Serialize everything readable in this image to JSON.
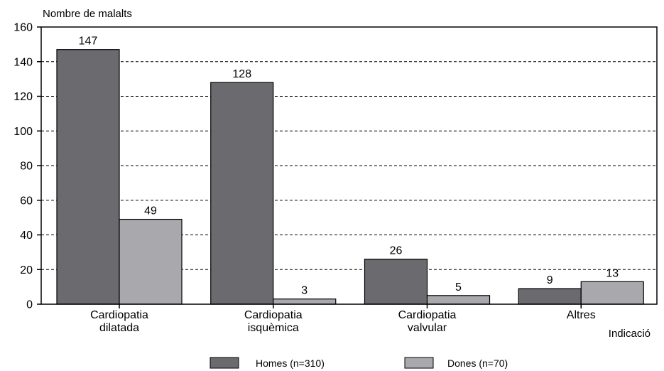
{
  "chart_data": {
    "type": "bar",
    "ylabel": "Nombre de malalts",
    "xlabel": "Indicació",
    "ylim": [
      0,
      160
    ],
    "yticks": [
      0,
      20,
      40,
      60,
      80,
      100,
      120,
      140,
      160
    ],
    "grid": "horizontal-dashed",
    "legend_position": "bottom",
    "categories": [
      [
        "Cardiopatia",
        "dilatada"
      ],
      [
        "Cardiopatia",
        "isquèmica"
      ],
      [
        "Cardiopatia",
        "valvular"
      ],
      [
        "Altres"
      ]
    ],
    "series": [
      {
        "name": "Homes (n=310)",
        "color": "#6b6b6f",
        "values": [
          147,
          128,
          26,
          9
        ]
      },
      {
        "name": "Dones (n=70)",
        "color": "#a9a9ad",
        "values": [
          49,
          3,
          5,
          13
        ]
      }
    ]
  }
}
